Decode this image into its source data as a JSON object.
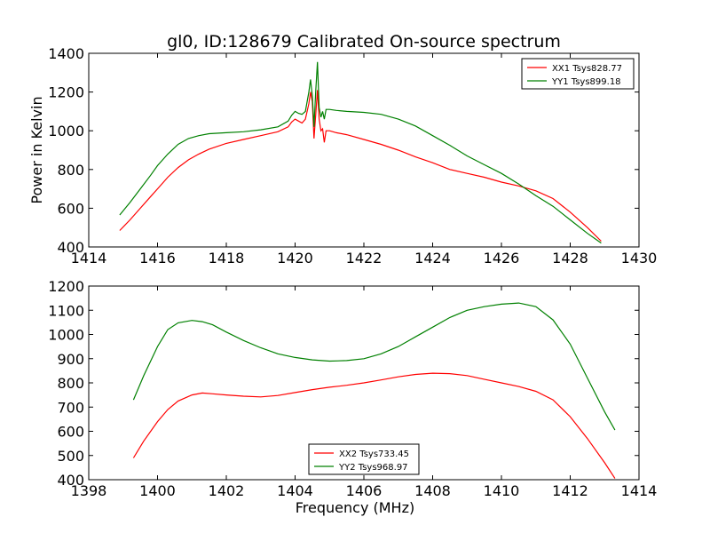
{
  "title": "gl0, ID:128679 Calibrated On-source spectrum",
  "chart_data": [
    {
      "type": "line",
      "title": "gl0, ID:128679 Calibrated On-source spectrum",
      "xlabel": "",
      "ylabel": "Power in Kelvin",
      "xlim": [
        1414,
        1430
      ],
      "ylim": [
        400,
        1400
      ],
      "xticks": [
        1414,
        1416,
        1418,
        1420,
        1422,
        1424,
        1426,
        1428,
        1430
      ],
      "yticks": [
        400,
        600,
        800,
        1000,
        1200,
        1400
      ],
      "grid": false,
      "legend_position": "top-right",
      "colors": {
        "XX": "#ff0000",
        "YY": "#008000"
      },
      "series": [
        {
          "name": "XX1 Tsys828.77",
          "color": "#ff0000",
          "x": [
            1414.9,
            1415.2,
            1415.5,
            1415.8,
            1416.0,
            1416.3,
            1416.6,
            1416.9,
            1417.2,
            1417.5,
            1418.0,
            1418.5,
            1419.0,
            1419.5,
            1419.8,
            1419.9,
            1420.0,
            1420.1,
            1420.2,
            1420.3,
            1420.4,
            1420.45,
            1420.5,
            1420.55,
            1420.6,
            1420.65,
            1420.7,
            1420.75,
            1420.8,
            1420.85,
            1420.9,
            1421.0,
            1421.2,
            1421.5,
            1422.0,
            1422.5,
            1423.0,
            1423.5,
            1424.0,
            1424.5,
            1425.0,
            1425.5,
            1426.0,
            1426.5,
            1427.0,
            1427.5,
            1428.0,
            1428.5,
            1428.9
          ],
          "y": [
            485,
            540,
            600,
            660,
            700,
            760,
            810,
            850,
            880,
            905,
            935,
            955,
            975,
            995,
            1020,
            1045,
            1060,
            1050,
            1040,
            1060,
            1140,
            1200,
            1150,
            960,
            1080,
            1210,
            1060,
            1000,
            1010,
            940,
            1000,
            1000,
            990,
            980,
            955,
            930,
            900,
            865,
            835,
            800,
            780,
            760,
            735,
            715,
            690,
            650,
            580,
            500,
            430
          ]
        },
        {
          "name": "YY1 Tsys899.18",
          "color": "#008000",
          "x": [
            1414.9,
            1415.2,
            1415.5,
            1415.8,
            1416.0,
            1416.3,
            1416.6,
            1416.9,
            1417.2,
            1417.5,
            1418.0,
            1418.5,
            1419.0,
            1419.5,
            1419.8,
            1419.9,
            1420.0,
            1420.1,
            1420.2,
            1420.3,
            1420.4,
            1420.45,
            1420.5,
            1420.55,
            1420.6,
            1420.65,
            1420.7,
            1420.75,
            1420.8,
            1420.85,
            1420.9,
            1421.0,
            1421.2,
            1421.5,
            1422.0,
            1422.5,
            1423.0,
            1423.5,
            1424.0,
            1424.5,
            1425.0,
            1425.5,
            1426.0,
            1426.5,
            1427.0,
            1427.5,
            1428.0,
            1428.5,
            1428.9
          ],
          "y": [
            565,
            630,
            700,
            770,
            820,
            880,
            930,
            960,
            975,
            985,
            990,
            995,
            1005,
            1020,
            1050,
            1080,
            1100,
            1090,
            1085,
            1100,
            1200,
            1265,
            1180,
            1020,
            1200,
            1355,
            1120,
            1070,
            1100,
            1060,
            1110,
            1110,
            1105,
            1100,
            1095,
            1085,
            1060,
            1025,
            975,
            925,
            870,
            825,
            780,
            725,
            665,
            610,
            540,
            470,
            420
          ]
        }
      ]
    },
    {
      "type": "line",
      "title": "",
      "xlabel": "Frequency (MHz)",
      "ylabel": "",
      "xlim": [
        1398,
        1414
      ],
      "ylim": [
        400,
        1200
      ],
      "xticks": [
        1398,
        1400,
        1402,
        1404,
        1406,
        1408,
        1410,
        1412,
        1414
      ],
      "yticks": [
        400,
        500,
        600,
        700,
        800,
        900,
        1000,
        1100,
        1200
      ],
      "grid": false,
      "legend_position": "bottom-center",
      "series": [
        {
          "name": "XX2 Tsys733.45",
          "color": "#ff0000",
          "x": [
            1399.3,
            1399.6,
            1400.0,
            1400.3,
            1400.6,
            1401.0,
            1401.3,
            1401.6,
            1402.0,
            1402.5,
            1403.0,
            1403.5,
            1404.0,
            1404.5,
            1405.0,
            1405.5,
            1406.0,
            1406.5,
            1407.0,
            1407.5,
            1408.0,
            1408.5,
            1409.0,
            1409.5,
            1410.0,
            1410.5,
            1411.0,
            1411.5,
            1412.0,
            1412.5,
            1413.0,
            1413.3
          ],
          "y": [
            490,
            560,
            640,
            690,
            725,
            750,
            758,
            755,
            750,
            745,
            742,
            748,
            760,
            772,
            782,
            790,
            800,
            812,
            825,
            835,
            840,
            838,
            830,
            815,
            800,
            785,
            765,
            730,
            660,
            570,
            470,
            405
          ]
        },
        {
          "name": "YY2 Tsys968.97",
          "color": "#008000",
          "x": [
            1399.3,
            1399.6,
            1400.0,
            1400.3,
            1400.6,
            1401.0,
            1401.3,
            1401.6,
            1402.0,
            1402.5,
            1403.0,
            1403.5,
            1404.0,
            1404.5,
            1405.0,
            1405.5,
            1406.0,
            1406.5,
            1407.0,
            1407.5,
            1408.0,
            1408.5,
            1409.0,
            1409.5,
            1410.0,
            1410.5,
            1411.0,
            1411.5,
            1412.0,
            1412.5,
            1413.0,
            1413.3
          ],
          "y": [
            730,
            830,
            950,
            1020,
            1048,
            1058,
            1053,
            1040,
            1010,
            975,
            945,
            920,
            905,
            895,
            890,
            892,
            900,
            920,
            950,
            990,
            1030,
            1070,
            1100,
            1115,
            1125,
            1130,
            1115,
            1060,
            960,
            820,
            680,
            605
          ]
        }
      ]
    }
  ]
}
